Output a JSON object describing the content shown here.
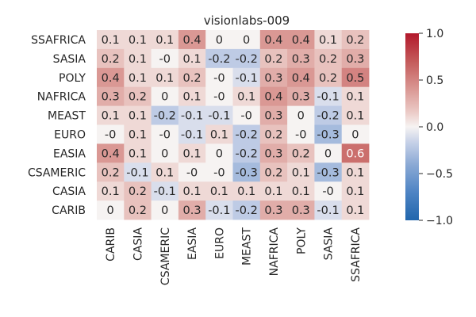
{
  "chart_data": {
    "type": "heatmap",
    "title": "visionlabs-009",
    "xlabel": "",
    "ylabel": "",
    "rows": [
      "SSAFRICA",
      "SASIA",
      "POLY",
      "NAFRICA",
      "MEAST",
      "EURO",
      "EASIA",
      "CSAMERIC",
      "CASIA",
      "CARIB"
    ],
    "columns": [
      "CARIB",
      "CASIA",
      "CSAMERIC",
      "EASIA",
      "EURO",
      "MEAST",
      "NAFRICA",
      "POLY",
      "SASIA",
      "SSAFRICA"
    ],
    "values": [
      [
        0.1,
        0.1,
        0.1,
        0.4,
        0,
        0,
        0.4,
        0.4,
        0.1,
        0.2
      ],
      [
        0.2,
        0.1,
        -0.0,
        0.1,
        -0.2,
        -0.2,
        0.2,
        0.3,
        0.2,
        0.3
      ],
      [
        0.4,
        0.1,
        0.1,
        0.2,
        -0.0,
        -0.1,
        0.3,
        0.4,
        0.2,
        0.5
      ],
      [
        0.3,
        0.2,
        0,
        0.1,
        -0.0,
        0.1,
        0.4,
        0.3,
        -0.1,
        0.1
      ],
      [
        0.1,
        0.1,
        -0.2,
        -0.1,
        -0.1,
        -0.0,
        0.3,
        0,
        -0.2,
        0.1
      ],
      [
        -0.0,
        0.1,
        -0.0,
        -0.1,
        0.1,
        -0.2,
        0.2,
        -0.0,
        -0.3,
        0
      ],
      [
        0.4,
        0.1,
        0,
        0.1,
        0,
        -0.2,
        0.3,
        0.2,
        0,
        0.6
      ],
      [
        0.2,
        -0.1,
        0.1,
        -0.0,
        -0.0,
        -0.3,
        0.2,
        0.1,
        -0.3,
        0.1
      ],
      [
        0.1,
        0.2,
        -0.1,
        0.1,
        0.1,
        0.1,
        0.1,
        0.1,
        -0.0,
        0.1
      ],
      [
        0,
        0.2,
        0,
        0.3,
        -0.1,
        -0.2,
        0.3,
        0.3,
        -0.1,
        0.1
      ]
    ],
    "labels": [
      [
        "0.1",
        "0.1",
        "0.1",
        "0.4",
        "0",
        "0",
        "0.4",
        "0.4",
        "0.1",
        "0.2"
      ],
      [
        "0.2",
        "0.1",
        "-0",
        "0.1",
        "-0.2",
        "-0.2",
        "0.2",
        "0.3",
        "0.2",
        "0.3"
      ],
      [
        "0.4",
        "0.1",
        "0.1",
        "0.2",
        "-0",
        "-0.1",
        "0.3",
        "0.4",
        "0.2",
        "0.5"
      ],
      [
        "0.3",
        "0.2",
        "0",
        "0.1",
        "-0",
        "0.1",
        "0.4",
        "0.3",
        "-0.1",
        "0.1"
      ],
      [
        "0.1",
        "0.1",
        "-0.2",
        "-0.1",
        "-0.1",
        "-0",
        "0.3",
        "0",
        "-0.2",
        "0.1"
      ],
      [
        "-0",
        "0.1",
        "-0",
        "-0.1",
        "0.1",
        "-0.2",
        "0.2",
        "-0",
        "-0.3",
        "0"
      ],
      [
        "0.4",
        "0.1",
        "0",
        "0.1",
        "0",
        "-0.2",
        "0.3",
        "0.2",
        "0",
        "0.6"
      ],
      [
        "0.2",
        "-0.1",
        "0.1",
        "-0",
        "-0",
        "-0.3",
        "0.2",
        "0.1",
        "-0.3",
        "0.1"
      ],
      [
        "0.1",
        "0.2",
        "-0.1",
        "0.1",
        "0.1",
        "0.1",
        "0.1",
        "0.1",
        "-0",
        "0.1"
      ],
      [
        "0",
        "0.2",
        "0",
        "0.3",
        "-0.1",
        "-0.2",
        "0.3",
        "0.3",
        "-0.1",
        "0.1"
      ]
    ],
    "vmin": -1.0,
    "vmax": 1.0,
    "colormap": "vlag",
    "colorbar": {
      "ticks": [
        1.0,
        0.5,
        0.0,
        -0.5,
        -1.0
      ],
      "tick_labels": [
        "1.0",
        "0.5",
        "0.0",
        "−0.5",
        "−1.0"
      ]
    },
    "grid": false
  }
}
